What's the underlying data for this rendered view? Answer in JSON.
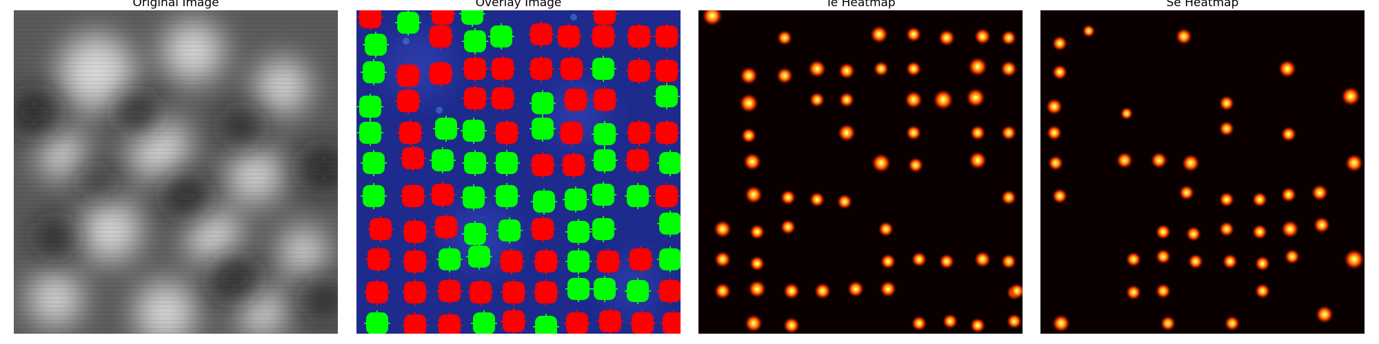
{
  "panels": [
    {
      "id": "original",
      "title": "Original Image"
    },
    {
      "id": "overlay",
      "title": "Overlay Image"
    },
    {
      "id": "te",
      "title": "Te Heatmap"
    },
    {
      "id": "se",
      "title": "Se Heatmap"
    }
  ],
  "colors": {
    "overlay_background": "#1e2a8c",
    "te_marker": "#00ff00",
    "se_marker": "#ff0000",
    "heatmap_background": "#0a0000"
  }
}
